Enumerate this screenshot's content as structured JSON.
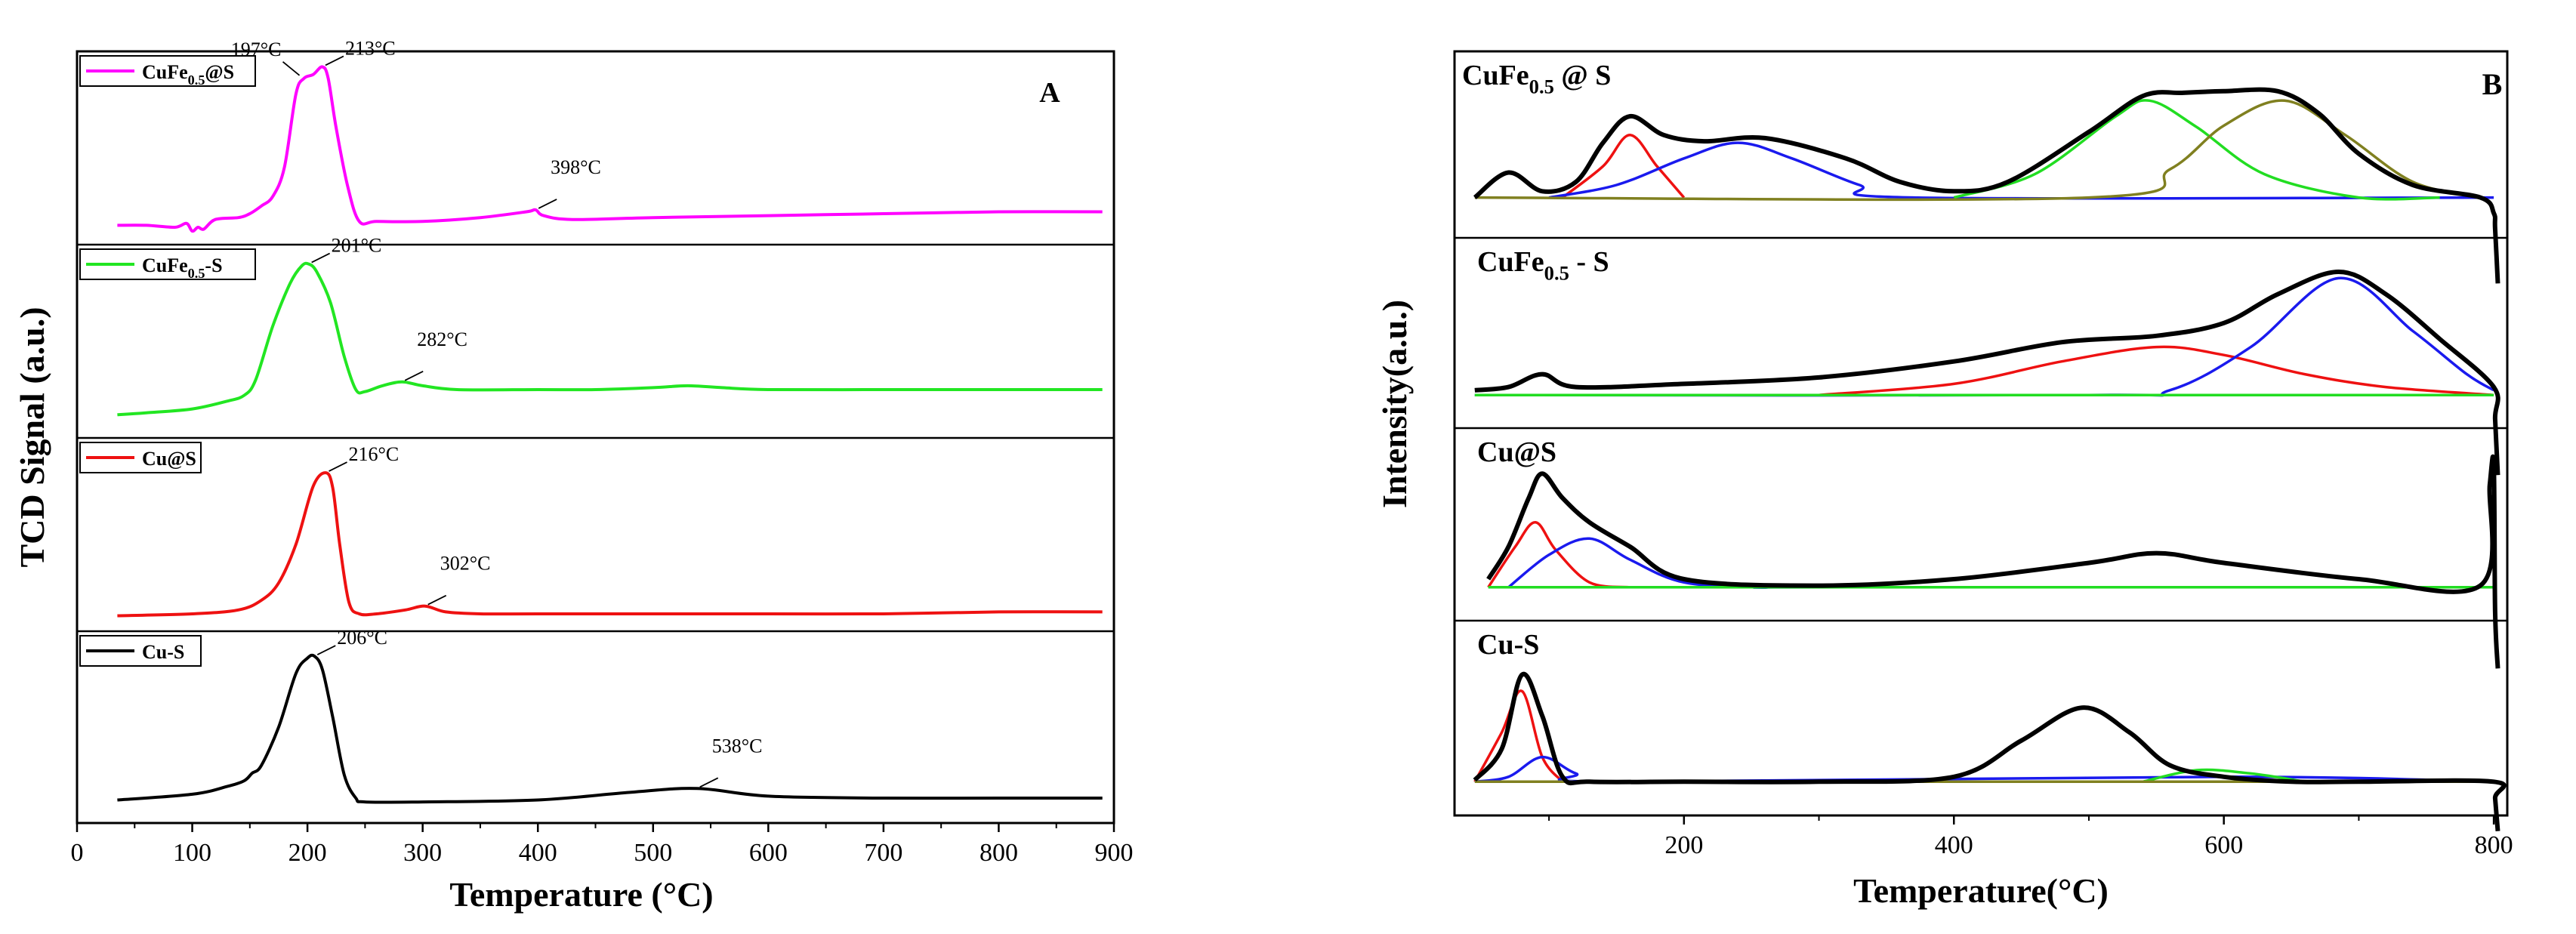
{
  "chart_data": [
    {
      "type": "line",
      "panel_label": "A",
      "xlabel": "Temperature (°C)",
      "ylabel": "TCD Signal (a.u.)",
      "xlim": [
        0,
        900
      ],
      "x_ticks": [
        0,
        100,
        200,
        300,
        400,
        500,
        600,
        700,
        800,
        900
      ],
      "series": [
        {
          "name": "CuFe0.5@S",
          "label_main": "CuFe",
          "label_sub": "0.5",
          "label_rest": "@S",
          "color": "#ff00ff",
          "x": [
            35,
            60,
            85,
            95,
            100,
            105,
            110,
            120,
            140,
            150,
            160,
            170,
            180,
            190,
            197,
            205,
            213,
            218,
            225,
            235,
            245,
            260,
            300,
            350,
            390,
            398,
            405,
            430,
            500,
            600,
            700,
            800,
            890
          ],
          "y": [
            0.1,
            0.1,
            0.09,
            0.11,
            0.07,
            0.09,
            0.08,
            0.13,
            0.14,
            0.16,
            0.2,
            0.25,
            0.4,
            0.78,
            0.86,
            0.88,
            0.92,
            0.86,
            0.6,
            0.3,
            0.12,
            0.12,
            0.12,
            0.14,
            0.17,
            0.18,
            0.15,
            0.13,
            0.14,
            0.15,
            0.16,
            0.17,
            0.17
          ],
          "peak_labels": [
            {
              "text": "197°C",
              "x": 197,
              "y": 0.86
            },
            {
              "text": "213°C",
              "x": 213,
              "y": 0.92
            },
            {
              "text": "398°C",
              "x": 398,
              "y": 0.18
            }
          ]
        },
        {
          "name": "CuFe0.5-S",
          "label_main": "CuFe",
          "label_sub": "0.5",
          "label_rest": "-S",
          "color": "#22e622",
          "x": [
            35,
            60,
            100,
            130,
            145,
            155,
            170,
            185,
            195,
            201,
            208,
            220,
            232,
            242,
            250,
            265,
            282,
            300,
            330,
            400,
            450,
            500,
            530,
            560,
            600,
            700,
            800,
            890
          ],
          "y": [
            0.12,
            0.13,
            0.15,
            0.19,
            0.22,
            0.3,
            0.58,
            0.8,
            0.89,
            0.9,
            0.86,
            0.7,
            0.42,
            0.25,
            0.24,
            0.27,
            0.29,
            0.27,
            0.25,
            0.25,
            0.25,
            0.26,
            0.27,
            0.26,
            0.25,
            0.25,
            0.25,
            0.25
          ],
          "peak_labels": [
            {
              "text": "201°C",
              "x": 201,
              "y": 0.9
            },
            {
              "text": "282°C",
              "x": 282,
              "y": 0.29
            }
          ]
        },
        {
          "name": "Cu@S",
          "label_main": "Cu@S",
          "label_sub": "",
          "label_rest": "",
          "color": "#ee1111",
          "x": [
            35,
            100,
            140,
            160,
            175,
            190,
            205,
            216,
            222,
            228,
            236,
            245,
            260,
            285,
            302,
            320,
            350,
            400,
            500,
            600,
            700,
            800,
            890
          ],
          "y": [
            0.08,
            0.09,
            0.11,
            0.16,
            0.25,
            0.45,
            0.75,
            0.82,
            0.74,
            0.45,
            0.15,
            0.09,
            0.09,
            0.11,
            0.13,
            0.1,
            0.09,
            0.09,
            0.09,
            0.09,
            0.09,
            0.1,
            0.1
          ],
          "peak_labels": [
            {
              "text": "216°C",
              "x": 216,
              "y": 0.82
            },
            {
              "text": "302°C",
              "x": 302,
              "y": 0.13
            }
          ]
        },
        {
          "name": "Cu-S",
          "label_main": "Cu-S",
          "label_sub": "",
          "label_rest": "",
          "color": "#000000",
          "x": [
            35,
            100,
            130,
            145,
            152,
            160,
            175,
            190,
            200,
            206,
            213,
            222,
            232,
            242,
            250,
            300,
            400,
            480,
            538,
            600,
            700,
            800,
            890
          ],
          "y": [
            0.12,
            0.15,
            0.19,
            0.22,
            0.26,
            0.3,
            0.5,
            0.78,
            0.86,
            0.87,
            0.8,
            0.55,
            0.25,
            0.13,
            0.11,
            0.11,
            0.12,
            0.16,
            0.18,
            0.14,
            0.13,
            0.13,
            0.13
          ],
          "peak_labels": [
            {
              "text": "206°C",
              "x": 206,
              "y": 0.87
            },
            {
              "text": "538°C",
              "x": 538,
              "y": 0.18
            }
          ]
        }
      ]
    },
    {
      "type": "line",
      "panel_label": "B",
      "xlabel": "Temperature(°C)",
      "ylabel": "Intensity(a.u.)",
      "xlim": [
        30,
        810
      ],
      "x_ticks": [
        200,
        400,
        600,
        800
      ],
      "panels": [
        {
          "label_main": "CuFe",
          "label_sub": "0.5",
          "label_rest": " @ S",
          "baseline": 0.2,
          "fits": [
            {
              "color": "#000000",
              "x": [
                45,
                70,
                95,
                120,
                140,
                160,
                185,
                215,
                260,
                320,
                360,
                400,
                440,
                500,
                540,
                570,
                600,
                640,
                670,
                700,
                740,
                790,
                800,
                801,
                803
              ],
              "y": [
                0.2,
                0.36,
                0.24,
                0.3,
                0.55,
                0.72,
                0.6,
                0.56,
                0.58,
                0.45,
                0.3,
                0.24,
                0.3,
                0.62,
                0.85,
                0.87,
                0.88,
                0.88,
                0.74,
                0.48,
                0.28,
                0.2,
                0.1,
                0.0,
                -0.35
              ]
            },
            {
              "color": "#ee1111",
              "x": [
                110,
                140,
                160,
                180,
                200
              ],
              "y": [
                0.2,
                0.4,
                0.6,
                0.4,
                0.2
              ]
            },
            {
              "color": "#1a1aee",
              "x": [
                100,
                150,
                200,
                240,
                280,
                330,
                370,
                800
              ],
              "y": [
                0.2,
                0.28,
                0.45,
                0.55,
                0.45,
                0.28,
                0.2,
                0.2
              ]
            },
            {
              "color": "#22dd22",
              "x": [
                400,
                460,
                520,
                545,
                580,
                630,
                700,
                760
              ],
              "y": [
                0.2,
                0.35,
                0.72,
                0.82,
                0.65,
                0.35,
                0.2,
                0.2
              ]
            },
            {
              "color": "#808020",
              "x": [
                45,
                500,
                560,
                600,
                645,
                690,
                740,
                790
              ],
              "y": [
                0.2,
                0.2,
                0.38,
                0.66,
                0.82,
                0.6,
                0.3,
                0.2
              ]
            }
          ]
        },
        {
          "label_main": "CuFe",
          "label_sub": "0.5",
          "label_rest": " - S",
          "baseline": 0.15,
          "fits": [
            {
              "color": "#000000",
              "x": [
                45,
                70,
                95,
                120,
                200,
                300,
                400,
                480,
                550,
                600,
                640,
                685,
                720,
                760,
                800,
                801,
                803
              ],
              "y": [
                0.18,
                0.2,
                0.28,
                0.2,
                0.22,
                0.26,
                0.36,
                0.48,
                0.52,
                0.6,
                0.78,
                0.92,
                0.78,
                0.5,
                0.2,
                0.0,
                -0.35
              ]
            },
            {
              "color": "#ee1111",
              "x": [
                300,
                400,
                480,
                550,
                600,
                660,
                720,
                800
              ],
              "y": [
                0.15,
                0.22,
                0.36,
                0.45,
                0.4,
                0.28,
                0.2,
                0.15
              ]
            },
            {
              "color": "#1a1aee",
              "x": [
                45,
                500,
                560,
                620,
                685,
                740,
                780,
                800
              ],
              "y": [
                0.15,
                0.15,
                0.18,
                0.45,
                0.88,
                0.55,
                0.28,
                0.18
              ]
            },
            {
              "color": "#22dd22",
              "x": [
                45,
                800
              ],
              "y": [
                0.15,
                0.15
              ]
            }
          ]
        },
        {
          "label_main": "Cu@S",
          "label_sub": "",
          "label_rest": "",
          "baseline": 0.15,
          "fits": [
            {
              "color": "#000000",
              "x": [
                55,
                70,
                85,
                95,
                110,
                130,
                160,
                200,
                300,
                400,
                500,
                550,
                600,
                700,
                790,
                797,
                800,
                801,
                803
              ],
              "y": [
                0.2,
                0.4,
                0.7,
                0.85,
                0.7,
                0.55,
                0.4,
                0.2,
                0.16,
                0.2,
                0.3,
                0.36,
                0.3,
                0.2,
                0.16,
                0.78,
                0.9,
                0.0,
                -0.35
              ]
            },
            {
              "color": "#ee1111",
              "x": [
                55,
                75,
                90,
                105,
                130,
                160
              ],
              "y": [
                0.15,
                0.4,
                0.55,
                0.38,
                0.18,
                0.15
              ]
            },
            {
              "color": "#1a1aee",
              "x": [
                70,
                100,
                130,
                160,
                200,
                260,
                300,
                800
              ],
              "y": [
                0.15,
                0.35,
                0.45,
                0.32,
                0.18,
                0.15,
                0.15,
                0.15
              ]
            },
            {
              "color": "#22dd22",
              "x": [
                55,
                800
              ],
              "y": [
                0.15,
                0.15
              ]
            }
          ]
        },
        {
          "label_main": "Cu-S",
          "label_sub": "",
          "label_rest": "",
          "baseline": 0.15,
          "fits": [
            {
              "color": "#000000",
              "x": [
                45,
                65,
                80,
                95,
                110,
                130,
                200,
                300,
                400,
                450,
                495,
                530,
                560,
                600,
                650,
                700,
                800,
                801,
                803
              ],
              "y": [
                0.16,
                0.35,
                0.8,
                0.55,
                0.18,
                0.15,
                0.15,
                0.15,
                0.18,
                0.4,
                0.6,
                0.45,
                0.25,
                0.18,
                0.15,
                0.15,
                0.15,
                0.05,
                -0.15
              ]
            },
            {
              "color": "#ee1111",
              "x": [
                45,
                65,
                80,
                95,
                110
              ],
              "y": [
                0.15,
                0.45,
                0.7,
                0.3,
                0.15
              ]
            },
            {
              "color": "#1a1aee",
              "x": [
                45,
                70,
                95,
                120,
                150,
                600,
                800
              ],
              "y": [
                0.15,
                0.18,
                0.3,
                0.2,
                0.15,
                0.18,
                0.15
              ]
            },
            {
              "color": "#22dd22",
              "x": [
                540,
                580,
                620,
                660
              ],
              "y": [
                0.15,
                0.22,
                0.2,
                0.15
              ]
            },
            {
              "color": "#808020",
              "x": [
                45,
                800
              ],
              "y": [
                0.15,
                0.15
              ]
            }
          ]
        }
      ]
    }
  ]
}
